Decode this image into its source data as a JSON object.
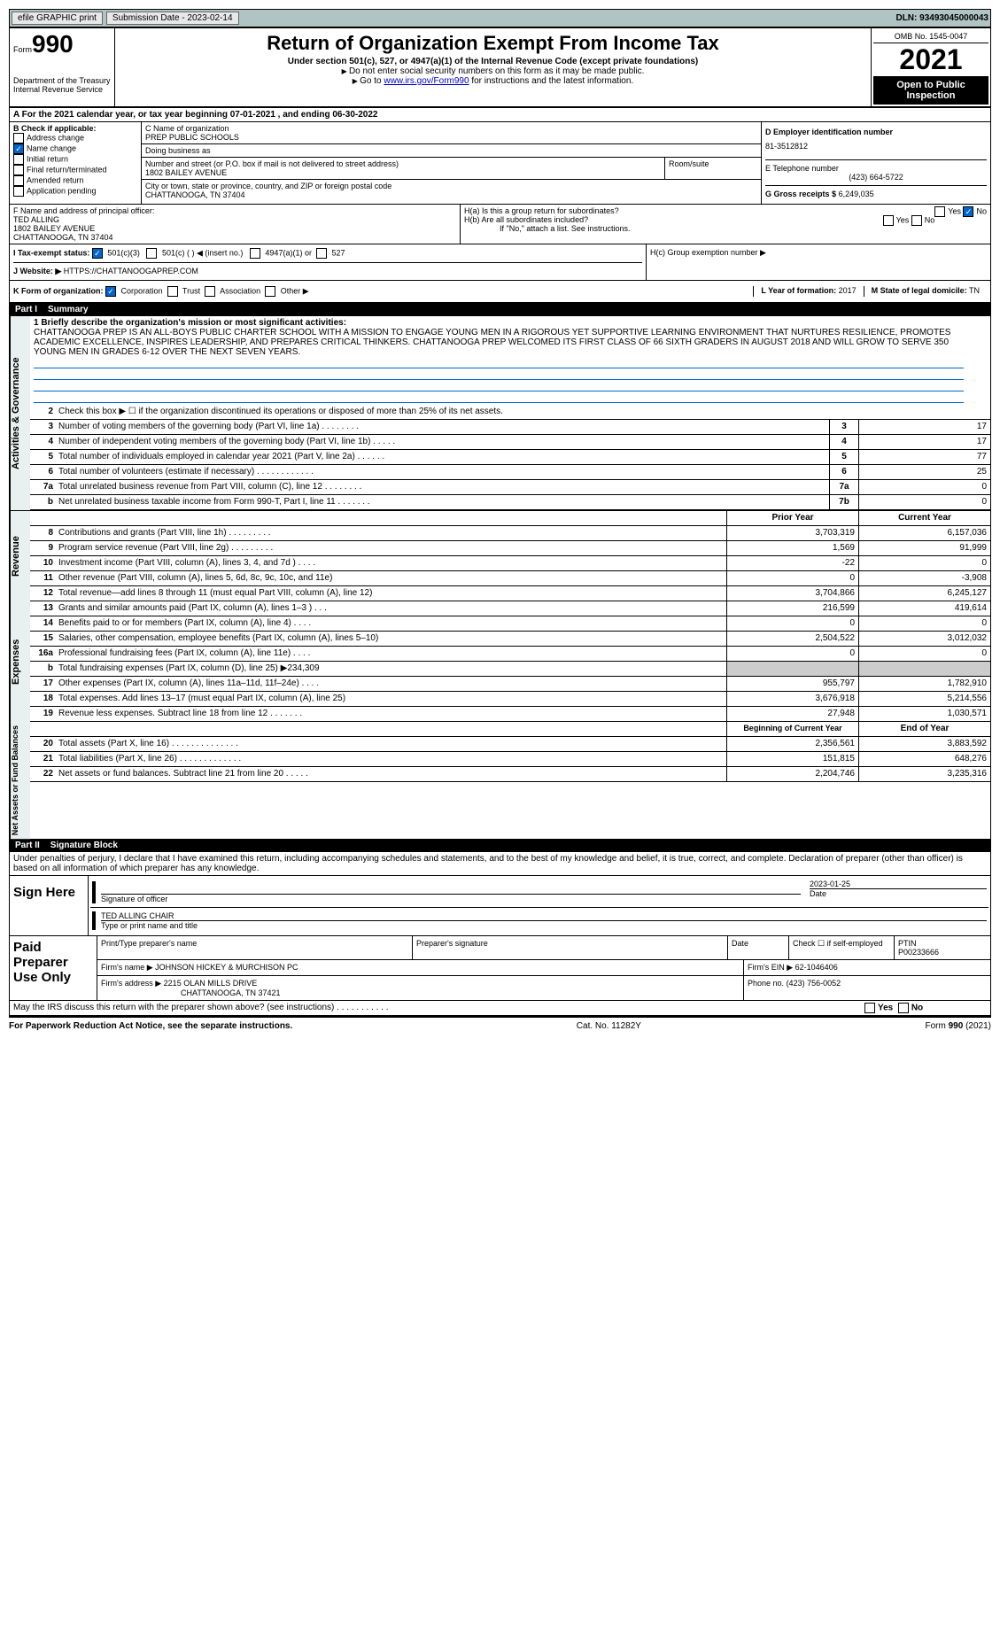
{
  "topbar": {
    "efile": "efile GRAPHIC print",
    "submission": "Submission Date - 2023-02-14",
    "dln": "DLN: 93493045000043"
  },
  "header": {
    "form_word": "Form",
    "form_num": "990",
    "title": "Return of Organization Exempt From Income Tax",
    "subtitle": "Under section 501(c), 527, or 4947(a)(1) of the Internal Revenue Code (except private foundations)",
    "note1": "Do not enter social security numbers on this form as it may be made public.",
    "note2_pre": "Go to ",
    "note2_link": "www.irs.gov/Form990",
    "note2_post": " for instructions and the latest information.",
    "dept": "Department of the Treasury\nInternal Revenue Service",
    "omb": "OMB No. 1545-0047",
    "year": "2021",
    "open": "Open to Public Inspection"
  },
  "rowA": "For the 2021 calendar year, or tax year beginning 07-01-2021     , and ending 06-30-2022",
  "colB": {
    "title": "B Check if applicable:",
    "items": [
      "Address change",
      "Name change",
      "Initial return",
      "Final return/terminated",
      "Amended return",
      "Application pending"
    ],
    "checked_index": 1
  },
  "colC": {
    "name_label": "C Name of organization",
    "name": "PREP PUBLIC SCHOOLS",
    "dba_label": "Doing business as",
    "dba": "",
    "addr_label": "Number and street (or P.O. box if mail is not delivered to street address)",
    "room_label": "Room/suite",
    "addr": "1802 BAILEY AVENUE",
    "city_label": "City or town, state or province, country, and ZIP or foreign postal code",
    "city": "CHATTANOOGA, TN  37404",
    "f_label": "F  Name and address of principal officer:",
    "f_name": "TED ALLING",
    "f_addr1": "1802 BAILEY AVENUE",
    "f_addr2": "CHATTANOOGA, TN  37404"
  },
  "colD": {
    "ein_label": "D Employer identification number",
    "ein": "81-3512812",
    "phone_label": "E Telephone number",
    "phone": "(423) 664-5722",
    "gross_label": "G Gross receipts $",
    "gross": "6,249,035"
  },
  "colH": {
    "ha": "H(a)  Is this a group return for subordinates?",
    "hb": "H(b)  Are all subordinates included?",
    "hb_note": "If \"No,\" attach a list. See instructions.",
    "hc": "H(c)  Group exemption number ▶"
  },
  "rowI": {
    "label": "I  Tax-exempt status:",
    "opts": [
      "501(c)(3)",
      "501(c) (  ) ◀ (insert no.)",
      "4947(a)(1) or",
      "527"
    ]
  },
  "rowJ": {
    "label": "J  Website: ▶",
    "val": "HTTPS://CHATTANOOGAPREP.COM"
  },
  "rowK": {
    "label": "K Form of organization:",
    "opts": [
      "Corporation",
      "Trust",
      "Association",
      "Other ▶"
    ]
  },
  "rowL": {
    "label": "L Year of formation:",
    "val": "2017"
  },
  "rowM": {
    "label": "M State of legal domicile:",
    "val": "TN"
  },
  "part1": {
    "title": "Part I",
    "name": "Summary"
  },
  "summary": {
    "l1_label": "1  Briefly describe the organization's mission or most significant activities:",
    "l1_text": "CHATTANOOGA PREP IS AN ALL-BOYS PUBLIC CHARTER SCHOOL WITH A MISSION TO ENGAGE YOUNG MEN IN A RIGOROUS YET SUPPORTIVE LEARNING ENVIRONMENT THAT NURTURES RESILIENCE, PROMOTES ACADEMIC EXCELLENCE, INSPIRES LEADERSHIP, AND PREPARES CRITICAL THINKERS. CHATTANOOGA PREP WELCOMED ITS FIRST CLASS OF 66 SIXTH GRADERS IN AUGUST 2018 AND WILL GROW TO SERVE 350 YOUNG MEN IN GRADES 6-12 OVER THE NEXT SEVEN YEARS.",
    "l2": "Check this box ▶ ☐  if the organization discontinued its operations or disposed of more than 25% of its net assets.",
    "rows": [
      {
        "n": "3",
        "d": "Number of voting members of the governing body (Part VI, line 1a)   .    .    .    .    .    .    .    .",
        "b": "3",
        "v": "17"
      },
      {
        "n": "4",
        "d": "Number of independent voting members of the governing body (Part VI, line 1b)   .    .    .    .    .",
        "b": "4",
        "v": "17"
      },
      {
        "n": "5",
        "d": "Total number of individuals employed in calendar year 2021 (Part V, line 2a)   .    .    .    .    .    .",
        "b": "5",
        "v": "77"
      },
      {
        "n": "6",
        "d": "Total number of volunteers (estimate if necessary)   .    .    .    .    .    .    .    .    .    .    .    .",
        "b": "6",
        "v": "25"
      },
      {
        "n": "7a",
        "d": "Total unrelated business revenue from Part VIII, column (C), line 12   .    .    .    .    .    .    .    .",
        "b": "7a",
        "v": "0"
      },
      {
        "n": "b",
        "d": "Net unrelated business taxable income from Form 990-T, Part I, line 11   .    .    .    .    .    .    .",
        "b": "7b",
        "v": "0"
      }
    ]
  },
  "revenue": {
    "head1": "Prior Year",
    "head2": "Current Year",
    "rows": [
      {
        "n": "8",
        "d": "Contributions and grants (Part VIII, line 1h)   .    .    .    .    .    .    .    .    .",
        "v1": "3,703,319",
        "v2": "6,157,036"
      },
      {
        "n": "9",
        "d": "Program service revenue (Part VIII, line 2g)   .    .    .    .    .    .    .    .    .",
        "v1": "1,569",
        "v2": "91,999"
      },
      {
        "n": "10",
        "d": "Investment income (Part VIII, column (A), lines 3, 4, and 7d )   .    .    .    .",
        "v1": "-22",
        "v2": "0"
      },
      {
        "n": "11",
        "d": "Other revenue (Part VIII, column (A), lines 5, 6d, 8c, 9c, 10c, and 11e)",
        "v1": "0",
        "v2": "-3,908"
      },
      {
        "n": "12",
        "d": "Total revenue—add lines 8 through 11 (must equal Part VIII, column (A), line 12)",
        "v1": "3,704,866",
        "v2": "6,245,127"
      }
    ]
  },
  "expenses": {
    "rows": [
      {
        "n": "13",
        "d": "Grants and similar amounts paid (Part IX, column (A), lines 1–3 )   .    .    .",
        "v1": "216,599",
        "v2": "419,614"
      },
      {
        "n": "14",
        "d": "Benefits paid to or for members (Part IX, column (A), line 4)   .    .    .    .",
        "v1": "0",
        "v2": "0"
      },
      {
        "n": "15",
        "d": "Salaries, other compensation, employee benefits (Part IX, column (A), lines 5–10)",
        "v1": "2,504,522",
        "v2": "3,012,032"
      },
      {
        "n": "16a",
        "d": "Professional fundraising fees (Part IX, column (A), line 11e)   .    .    .    .",
        "v1": "0",
        "v2": "0"
      },
      {
        "n": "b",
        "d": "Total fundraising expenses (Part IX, column (D), line 25) ▶234,309",
        "v1": "",
        "v2": "",
        "grey": true
      },
      {
        "n": "17",
        "d": "Other expenses (Part IX, column (A), lines 11a–11d, 11f–24e)   .    .    .    .",
        "v1": "955,797",
        "v2": "1,782,910"
      },
      {
        "n": "18",
        "d": "Total expenses. Add lines 13–17 (must equal Part IX, column (A), line 25)",
        "v1": "3,676,918",
        "v2": "5,214,556"
      },
      {
        "n": "19",
        "d": "Revenue less expenses. Subtract line 18 from line 12   .    .    .    .    .    .    .",
        "v1": "27,948",
        "v2": "1,030,571"
      }
    ]
  },
  "netassets": {
    "head1": "Beginning of Current Year",
    "head2": "End of Year",
    "rows": [
      {
        "n": "20",
        "d": "Total assets (Part X, line 16)   .    .    .    .    .    .    .    .    .    .    .    .    .    .",
        "v1": "2,356,561",
        "v2": "3,883,592"
      },
      {
        "n": "21",
        "d": "Total liabilities (Part X, line 26)   .    .    .    .    .    .    .    .    .    .    .    .    .",
        "v1": "151,815",
        "v2": "648,276"
      },
      {
        "n": "22",
        "d": "Net assets or fund balances. Subtract line 21 from line 20   .    .    .    .    .",
        "v1": "2,204,746",
        "v2": "3,235,316"
      }
    ]
  },
  "part2": {
    "title": "Part II",
    "name": "Signature Block"
  },
  "sig": {
    "decl": "Under penalties of perjury, I declare that I have examined this return, including accompanying schedules and statements, and to the best of my knowledge and belief, it is true, correct, and complete. Declaration of preparer (other than officer) is based on all information of which preparer has any knowledge.",
    "sign_here": "Sign Here",
    "sig_officer": "Signature of officer",
    "date": "2023-01-25",
    "date_label": "Date",
    "name_title": "TED ALLING CHAIR",
    "name_title_label": "Type or print name and title"
  },
  "prep": {
    "label": "Paid Preparer Use Only",
    "h1": "Print/Type preparer's name",
    "h2": "Preparer's signature",
    "h3": "Date",
    "h4": "Check ☐ if self-employed",
    "h5": "PTIN",
    "ptin": "P00233666",
    "firm_name_label": "Firm's name    ▶",
    "firm_name": "JOHNSON HICKEY & MURCHISON PC",
    "firm_ein_label": "Firm's EIN ▶",
    "firm_ein": "62-1046406",
    "firm_addr_label": "Firm's address ▶",
    "firm_addr1": "2215 OLAN MILLS DRIVE",
    "firm_addr2": "CHATTANOOGA, TN  37421",
    "phone_label": "Phone no.",
    "phone": "(423) 756-0052"
  },
  "discuss": "May the IRS discuss this return with the preparer shown above? (see instructions)   .    .    .    .    .    .    .    .    .    .    .",
  "footer": {
    "left": "For Paperwork Reduction Act Notice, see the separate instructions.",
    "mid": "Cat. No. 11282Y",
    "right": "Form 990 (2021)"
  }
}
